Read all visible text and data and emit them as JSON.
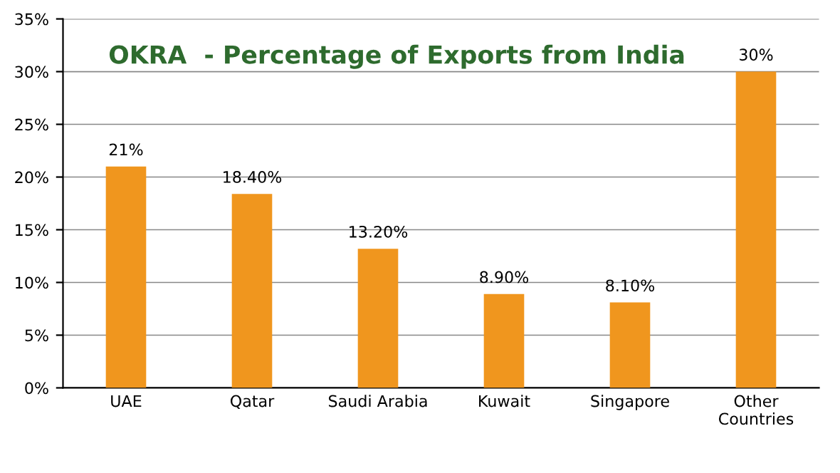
{
  "chart_data": {
    "type": "bar",
    "title": "OKRA  - Percentage of Exports from India",
    "categories": [
      "UAE",
      "Qatar",
      "Saudi Arabia",
      "Kuwait",
      "Singapore",
      "Other\nCountries"
    ],
    "values": [
      21,
      18.4,
      13.2,
      8.9,
      8.1,
      30
    ],
    "value_labels": [
      "21%",
      "18.40%",
      "13.20%",
      "8.90%",
      "8.10%",
      "30%"
    ],
    "color": "#f0961e",
    "ylim": [
      0,
      35
    ],
    "yticks": [
      {
        "value": 0,
        "label": "0%"
      },
      {
        "value": 5,
        "label": "5%"
      },
      {
        "value": 10,
        "label": "10%"
      },
      {
        "value": 15,
        "label": "15%"
      },
      {
        "value": 20,
        "label": "20%"
      },
      {
        "value": 25,
        "label": "25%"
      },
      {
        "value": 30,
        "label": "30%"
      },
      {
        "value": 35,
        "label": "35%"
      }
    ],
    "grid": "y"
  }
}
